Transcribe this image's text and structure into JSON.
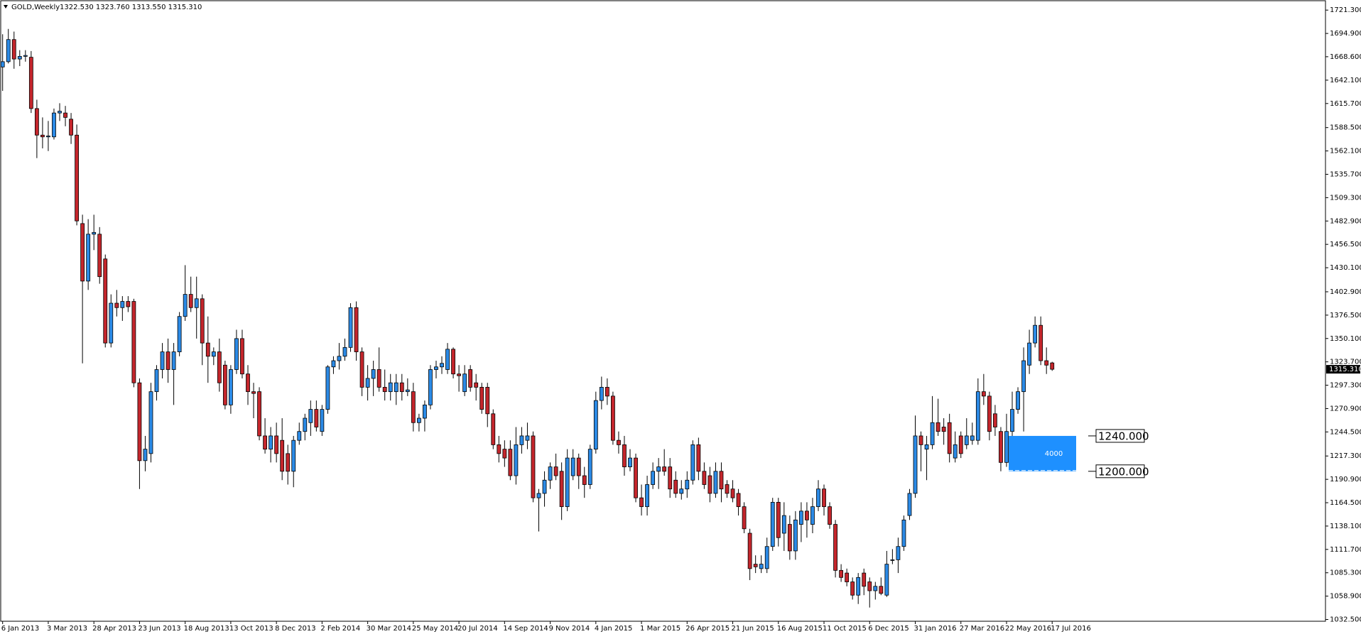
{
  "chart_data": {
    "type": "candlestick",
    "title": "GOLD,Weekly",
    "header_ohlc": "1322.530 1323.760 1313.550 1315.310",
    "categories": [
      "6 Jan 2013",
      null,
      null,
      null,
      null,
      null,
      null,
      null,
      "3 Mar 2013",
      null,
      null,
      null,
      null,
      null,
      null,
      null,
      "28 Apr 2013",
      null,
      null,
      null,
      null,
      null,
      null,
      null,
      "23 Jun 2013",
      null,
      null,
      null,
      null,
      null,
      null,
      null,
      "18 Aug 2013",
      null,
      null,
      null,
      null,
      null,
      null,
      null,
      "13 Oct 2013",
      null,
      null,
      null,
      null,
      null,
      null,
      null,
      "8 Dec 2013",
      null,
      null,
      null,
      null,
      null,
      null,
      null,
      "2 Feb 2014",
      null,
      null,
      null,
      null,
      null,
      null,
      null,
      "30 Mar 2014",
      null,
      null,
      null,
      null,
      null,
      null,
      null,
      "25 May 2014",
      null,
      null,
      null,
      null,
      null,
      null,
      null,
      "20 Jul 2014",
      null,
      null,
      null,
      null,
      null,
      null,
      null,
      "14 Sep 2014",
      null,
      null,
      null,
      null,
      null,
      null,
      null,
      "9 Nov 2014",
      null,
      null,
      null,
      null,
      null,
      null,
      null,
      "4 Jan 2015",
      null,
      null,
      null,
      null,
      null,
      null,
      null,
      "1 Mar 2015",
      null,
      null,
      null,
      null,
      null,
      null,
      null,
      "26 Apr 2015",
      null,
      null,
      null,
      null,
      null,
      null,
      null,
      "21 Jun 2015",
      null,
      null,
      null,
      null,
      null,
      null,
      null,
      "16 Aug 2015",
      null,
      null,
      null,
      null,
      null,
      null,
      null,
      "11 Oct 2015",
      null,
      null,
      null,
      null,
      null,
      null,
      null,
      "6 Dec 2015",
      null,
      null,
      null,
      null,
      null,
      null,
      null,
      "31 Jan 2016",
      null,
      null,
      null,
      null,
      null,
      null,
      null,
      "27 Mar 2016",
      null,
      null,
      null,
      null,
      null,
      null,
      null,
      "22 May 2016",
      null,
      null,
      null,
      null,
      null,
      null,
      null,
      "17 Jul 2016"
    ],
    "ohlc": [
      [
        1657,
        1694,
        1630,
        1663
      ],
      [
        1663,
        1700,
        1661,
        1688
      ],
      [
        1688,
        1697,
        1655,
        1666
      ],
      [
        1666,
        1676,
        1658,
        1669
      ],
      [
        1669,
        1676,
        1663,
        1670
      ],
      [
        1668,
        1675,
        1605,
        1610
      ],
      [
        1610,
        1620,
        1554,
        1580
      ],
      [
        1580,
        1600,
        1565,
        1578
      ],
      [
        1578,
        1596,
        1562,
        1579
      ],
      [
        1578,
        1610,
        1575,
        1605
      ],
      [
        1605,
        1616,
        1596,
        1607
      ],
      [
        1605,
        1613,
        1590,
        1600
      ],
      [
        1598,
        1605,
        1570,
        1580
      ],
      [
        1580,
        1592,
        1478,
        1483
      ],
      [
        1480,
        1490,
        1322,
        1415
      ],
      [
        1415,
        1485,
        1405,
        1468
      ],
      [
        1468,
        1490,
        1450,
        1470
      ],
      [
        1468,
        1476,
        1412,
        1420
      ],
      [
        1440,
        1445,
        1340,
        1345
      ],
      [
        1345,
        1400,
        1340,
        1390
      ],
      [
        1390,
        1405,
        1375,
        1385
      ],
      [
        1385,
        1398,
        1370,
        1392
      ],
      [
        1392,
        1398,
        1380,
        1386
      ],
      [
        1392,
        1395,
        1295,
        1300
      ],
      [
        1300,
        1305,
        1180,
        1212
      ],
      [
        1212,
        1240,
        1200,
        1225
      ],
      [
        1220,
        1300,
        1210,
        1290
      ],
      [
        1290,
        1320,
        1280,
        1315
      ],
      [
        1315,
        1345,
        1305,
        1335
      ],
      [
        1335,
        1350,
        1300,
        1315
      ],
      [
        1315,
        1345,
        1275,
        1335
      ],
      [
        1335,
        1380,
        1330,
        1375
      ],
      [
        1375,
        1433,
        1370,
        1400
      ],
      [
        1400,
        1420,
        1380,
        1385
      ],
      [
        1385,
        1420,
        1350,
        1395
      ],
      [
        1395,
        1400,
        1320,
        1345
      ],
      [
        1345,
        1375,
        1300,
        1330
      ],
      [
        1330,
        1340,
        1320,
        1335
      ],
      [
        1335,
        1350,
        1290,
        1300
      ],
      [
        1320,
        1325,
        1270,
        1275
      ],
      [
        1275,
        1320,
        1265,
        1315
      ],
      [
        1315,
        1360,
        1310,
        1350
      ],
      [
        1350,
        1360,
        1305,
        1310
      ],
      [
        1310,
        1320,
        1275,
        1290
      ],
      [
        1290,
        1300,
        1260,
        1288
      ],
      [
        1290,
        1295,
        1235,
        1240
      ],
      [
        1240,
        1260,
        1220,
        1225
      ],
      [
        1225,
        1250,
        1210,
        1240
      ],
      [
        1240,
        1255,
        1210,
        1220
      ],
      [
        1235,
        1260,
        1190,
        1200
      ],
      [
        1220,
        1230,
        1185,
        1200
      ],
      [
        1200,
        1240,
        1182,
        1235
      ],
      [
        1235,
        1255,
        1230,
        1245
      ],
      [
        1245,
        1265,
        1235,
        1260
      ],
      [
        1255,
        1280,
        1240,
        1270
      ],
      [
        1270,
        1280,
        1245,
        1250
      ],
      [
        1245,
        1275,
        1240,
        1270
      ],
      [
        1270,
        1320,
        1265,
        1318
      ],
      [
        1318,
        1330,
        1310,
        1325
      ],
      [
        1325,
        1345,
        1315,
        1330
      ],
      [
        1330,
        1350,
        1325,
        1340
      ],
      [
        1340,
        1390,
        1335,
        1385
      ],
      [
        1385,
        1392,
        1325,
        1335
      ],
      [
        1335,
        1340,
        1285,
        1295
      ],
      [
        1295,
        1320,
        1280,
        1305
      ],
      [
        1305,
        1325,
        1285,
        1315
      ],
      [
        1315,
        1340,
        1290,
        1295
      ],
      [
        1295,
        1315,
        1280,
        1290
      ],
      [
        1290,
        1310,
        1280,
        1300
      ],
      [
        1290,
        1310,
        1275,
        1300
      ],
      [
        1300,
        1310,
        1280,
        1290
      ],
      [
        1290,
        1305,
        1285,
        1292
      ],
      [
        1290,
        1300,
        1245,
        1255
      ],
      [
        1255,
        1265,
        1245,
        1260
      ],
      [
        1260,
        1280,
        1245,
        1275
      ],
      [
        1275,
        1320,
        1270,
        1315
      ],
      [
        1315,
        1325,
        1305,
        1318
      ],
      [
        1318,
        1330,
        1310,
        1322
      ],
      [
        1315,
        1345,
        1310,
        1338
      ],
      [
        1338,
        1340,
        1305,
        1310
      ],
      [
        1310,
        1320,
        1290,
        1308
      ],
      [
        1290,
        1320,
        1285,
        1310
      ],
      [
        1315,
        1320,
        1290,
        1295
      ],
      [
        1300,
        1310,
        1280,
        1295
      ],
      [
        1295,
        1300,
        1265,
        1270
      ],
      [
        1295,
        1300,
        1250,
        1265
      ],
      [
        1265,
        1270,
        1225,
        1230
      ],
      [
        1230,
        1240,
        1210,
        1220
      ],
      [
        1225,
        1235,
        1205,
        1215
      ],
      [
        1225,
        1235,
        1190,
        1195
      ],
      [
        1195,
        1250,
        1185,
        1230
      ],
      [
        1230,
        1250,
        1220,
        1240
      ],
      [
        1235,
        1255,
        1225,
        1240
      ],
      [
        1240,
        1245,
        1165,
        1170
      ],
      [
        1170,
        1180,
        1132,
        1175
      ],
      [
        1175,
        1200,
        1160,
        1190
      ],
      [
        1190,
        1210,
        1180,
        1205
      ],
      [
        1205,
        1220,
        1190,
        1195
      ],
      [
        1200,
        1210,
        1145,
        1160
      ],
      [
        1160,
        1225,
        1155,
        1215
      ],
      [
        1195,
        1225,
        1190,
        1215
      ],
      [
        1215,
        1220,
        1180,
        1195
      ],
      [
        1195,
        1205,
        1170,
        1185
      ],
      [
        1185,
        1230,
        1180,
        1225
      ],
      [
        1225,
        1290,
        1220,
        1280
      ],
      [
        1280,
        1307,
        1270,
        1295
      ],
      [
        1295,
        1305,
        1275,
        1285
      ],
      [
        1285,
        1290,
        1230,
        1235
      ],
      [
        1235,
        1245,
        1220,
        1230
      ],
      [
        1230,
        1240,
        1195,
        1205
      ],
      [
        1205,
        1225,
        1200,
        1215
      ],
      [
        1215,
        1220,
        1165,
        1170
      ],
      [
        1170,
        1185,
        1150,
        1160
      ],
      [
        1160,
        1195,
        1150,
        1185
      ],
      [
        1185,
        1210,
        1180,
        1200
      ],
      [
        1200,
        1215,
        1180,
        1205
      ],
      [
        1205,
        1225,
        1195,
        1200
      ],
      [
        1205,
        1215,
        1170,
        1180
      ],
      [
        1190,
        1200,
        1170,
        1175
      ],
      [
        1175,
        1190,
        1168,
        1180
      ],
      [
        1180,
        1200,
        1170,
        1190
      ],
      [
        1190,
        1235,
        1185,
        1230
      ],
      [
        1230,
        1238,
        1190,
        1200
      ],
      [
        1200,
        1210,
        1180,
        1185
      ],
      [
        1195,
        1205,
        1165,
        1175
      ],
      [
        1175,
        1210,
        1170,
        1200
      ],
      [
        1200,
        1210,
        1165,
        1180
      ],
      [
        1185,
        1190,
        1170,
        1175
      ],
      [
        1180,
        1190,
        1165,
        1170
      ],
      [
        1175,
        1180,
        1150,
        1160
      ],
      [
        1160,
        1165,
        1130,
        1135
      ],
      [
        1130,
        1135,
        1077,
        1090
      ],
      [
        1095,
        1105,
        1085,
        1092
      ],
      [
        1090,
        1105,
        1085,
        1095
      ],
      [
        1090,
        1125,
        1085,
        1115
      ],
      [
        1115,
        1170,
        1110,
        1165
      ],
      [
        1165,
        1170,
        1115,
        1125
      ],
      [
        1130,
        1165,
        1110,
        1150
      ],
      [
        1140,
        1150,
        1100,
        1110
      ],
      [
        1110,
        1155,
        1100,
        1145
      ],
      [
        1140,
        1165,
        1120,
        1155
      ],
      [
        1155,
        1165,
        1125,
        1145
      ],
      [
        1140,
        1170,
        1130,
        1160
      ],
      [
        1160,
        1190,
        1155,
        1180
      ],
      [
        1180,
        1185,
        1150,
        1160
      ],
      [
        1160,
        1165,
        1135,
        1140
      ],
      [
        1140,
        1145,
        1080,
        1088
      ],
      [
        1088,
        1095,
        1075,
        1080
      ],
      [
        1085,
        1090,
        1070,
        1075
      ],
      [
        1075,
        1080,
        1055,
        1060
      ],
      [
        1060,
        1085,
        1050,
        1080
      ],
      [
        1085,
        1090,
        1060,
        1070
      ],
      [
        1075,
        1080,
        1046,
        1065
      ],
      [
        1065,
        1075,
        1055,
        1070
      ],
      [
        1070,
        1080,
        1060,
        1062
      ],
      [
        1060,
        1110,
        1058,
        1095
      ],
      [
        1100,
        1112,
        1095,
        1100
      ],
      [
        1100,
        1125,
        1085,
        1115
      ],
      [
        1115,
        1150,
        1110,
        1145
      ],
      [
        1150,
        1180,
        1145,
        1175
      ],
      [
        1175,
        1263,
        1170,
        1240
      ],
      [
        1240,
        1245,
        1200,
        1230
      ],
      [
        1225,
        1240,
        1190,
        1230
      ],
      [
        1230,
        1285,
        1225,
        1255
      ],
      [
        1255,
        1282,
        1240,
        1245
      ],
      [
        1250,
        1260,
        1230,
        1245
      ],
      [
        1255,
        1265,
        1210,
        1220
      ],
      [
        1215,
        1245,
        1210,
        1230
      ],
      [
        1240,
        1245,
        1215,
        1220
      ],
      [
        1230,
        1260,
        1225,
        1240
      ],
      [
        1235,
        1255,
        1230,
        1240
      ],
      [
        1235,
        1305,
        1230,
        1290
      ],
      [
        1290,
        1310,
        1275,
        1285
      ],
      [
        1285,
        1290,
        1235,
        1245
      ],
      [
        1265,
        1275,
        1240,
        1250
      ],
      [
        1245,
        1250,
        1200,
        1210
      ],
      [
        1210,
        1265,
        1205,
        1245
      ],
      [
        1245,
        1290,
        1240,
        1270
      ],
      [
        1270,
        1295,
        1265,
        1290
      ],
      [
        1290,
        1340,
        1245,
        1325
      ],
      [
        1320,
        1360,
        1310,
        1345
      ],
      [
        1345,
        1375,
        1340,
        1365
      ],
      [
        1365,
        1375,
        1320,
        1325
      ],
      [
        1325,
        1340,
        1310,
        1320
      ],
      [
        1322.53,
        1323.76,
        1313.55,
        1315.31
      ]
    ],
    "up_color": "#2b8ae6",
    "down_color": "#c4262c",
    "ylim": [
      1030.5,
      1731.1
    ],
    "yticks": [
      {
        "value": 1721.3,
        "label": "1721.300"
      },
      {
        "value": 1694.9,
        "label": "1694.900"
      },
      {
        "value": 1668.6,
        "label": "1668.600"
      },
      {
        "value": 1642.1,
        "label": "1642.100"
      },
      {
        "value": 1615.7,
        "label": "1615.700"
      },
      {
        "value": 1588.5,
        "label": "1588.500"
      },
      {
        "value": 1562.1,
        "label": "1562.100"
      },
      {
        "value": 1535.7,
        "label": "1535.700"
      },
      {
        "value": 1509.3,
        "label": "1509.300"
      },
      {
        "value": 1482.9,
        "label": "1482.900"
      },
      {
        "value": 1456.5,
        "label": "1456.500"
      },
      {
        "value": 1430.1,
        "label": "1430.100"
      },
      {
        "value": 1402.9,
        "label": "1402.900"
      },
      {
        "value": 1376.5,
        "label": "1376.500"
      },
      {
        "value": 1350.1,
        "label": "1350.100"
      },
      {
        "value": 1323.7,
        "label": "1323.700"
      },
      {
        "value": 1297.3,
        "label": "1297.300"
      },
      {
        "value": 1270.9,
        "label": "1270.900"
      },
      {
        "value": 1244.5,
        "label": "1244.500"
      },
      {
        "value": 1217.3,
        "label": "1217.300"
      },
      {
        "value": 1190.9,
        "label": "1190.900"
      },
      {
        "value": 1164.5,
        "label": "1164.500"
      },
      {
        "value": 1138.1,
        "label": "1138.100"
      },
      {
        "value": 1111.7,
        "label": "1111.700"
      },
      {
        "value": 1085.3,
        "label": "1085.300"
      },
      {
        "value": 1058.9,
        "label": "1058.900"
      },
      {
        "value": 1032.5,
        "label": "1032.500"
      }
    ],
    "last_price": {
      "value": 1315.31,
      "label": "1315.310"
    },
    "zone": {
      "top": 1240,
      "bottom": 1200,
      "label": 4000,
      "color": "#1e90ff"
    },
    "levels": [
      {
        "value": 1240,
        "label": "1240.000"
      },
      {
        "value": 1200,
        "label": "1200.000"
      }
    ]
  }
}
